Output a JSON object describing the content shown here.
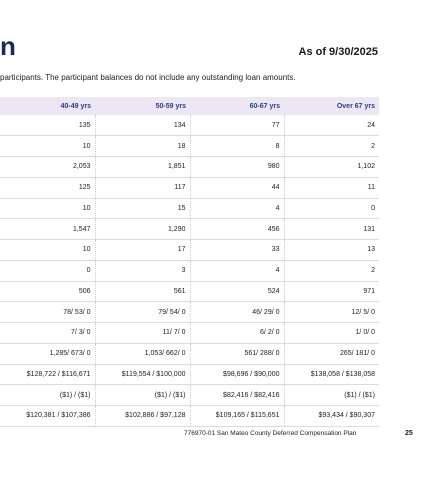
{
  "header": {
    "title_fragment": "n",
    "as_of": "As of 9/30/2025",
    "subtext": "participants. The participant balances do not include any outstanding loan amounts."
  },
  "table": {
    "columns": [
      "40-49 yrs",
      "50-59 yrs",
      "60-67 yrs",
      "Over 67 yrs"
    ],
    "rows": [
      [
        "135",
        "134",
        "77",
        "24"
      ],
      [
        "10",
        "18",
        "8",
        "2"
      ],
      [
        "2,053",
        "1,851",
        "980",
        "1,102"
      ],
      [
        "125",
        "117",
        "44",
        "11"
      ],
      [
        "10",
        "15",
        "4",
        "0"
      ],
      [
        "1,547",
        "1,290",
        "456",
        "131"
      ],
      [
        "10",
        "17",
        "33",
        "13"
      ],
      [
        "0",
        "3",
        "4",
        "2"
      ],
      [
        "506",
        "561",
        "524",
        "971"
      ],
      [
        "78/ 53/ 0",
        "79/ 54/ 0",
        "46/ 29/ 0",
        "12/ 5/ 0"
      ],
      [
        "7/ 3/ 0",
        "11/ 7/ 0",
        "6/ 2/ 0",
        "1/ 0/ 0"
      ],
      [
        "1,285/ 673/ 0",
        "1,053/ 662/ 0",
        "561/ 288/ 0",
        "265/ 181/ 0"
      ],
      [
        "$128,722 / $116,671",
        "$119,554 / $100,000",
        "$98,696 / $90,000",
        "$138,058 / $138,058"
      ],
      [
        "($1) / ($1)",
        "($1) / ($1)",
        "$82,416 / $82,416",
        "($1) / ($1)"
      ],
      [
        "$120,381 / $107,386",
        "$102,886 / $97,128",
        "$109,165 / $115,651",
        "$93,434 / $90,307"
      ]
    ]
  },
  "footer": {
    "document": "776970-01 San Mateo County Deferred Compensation Plan",
    "page": "25"
  }
}
